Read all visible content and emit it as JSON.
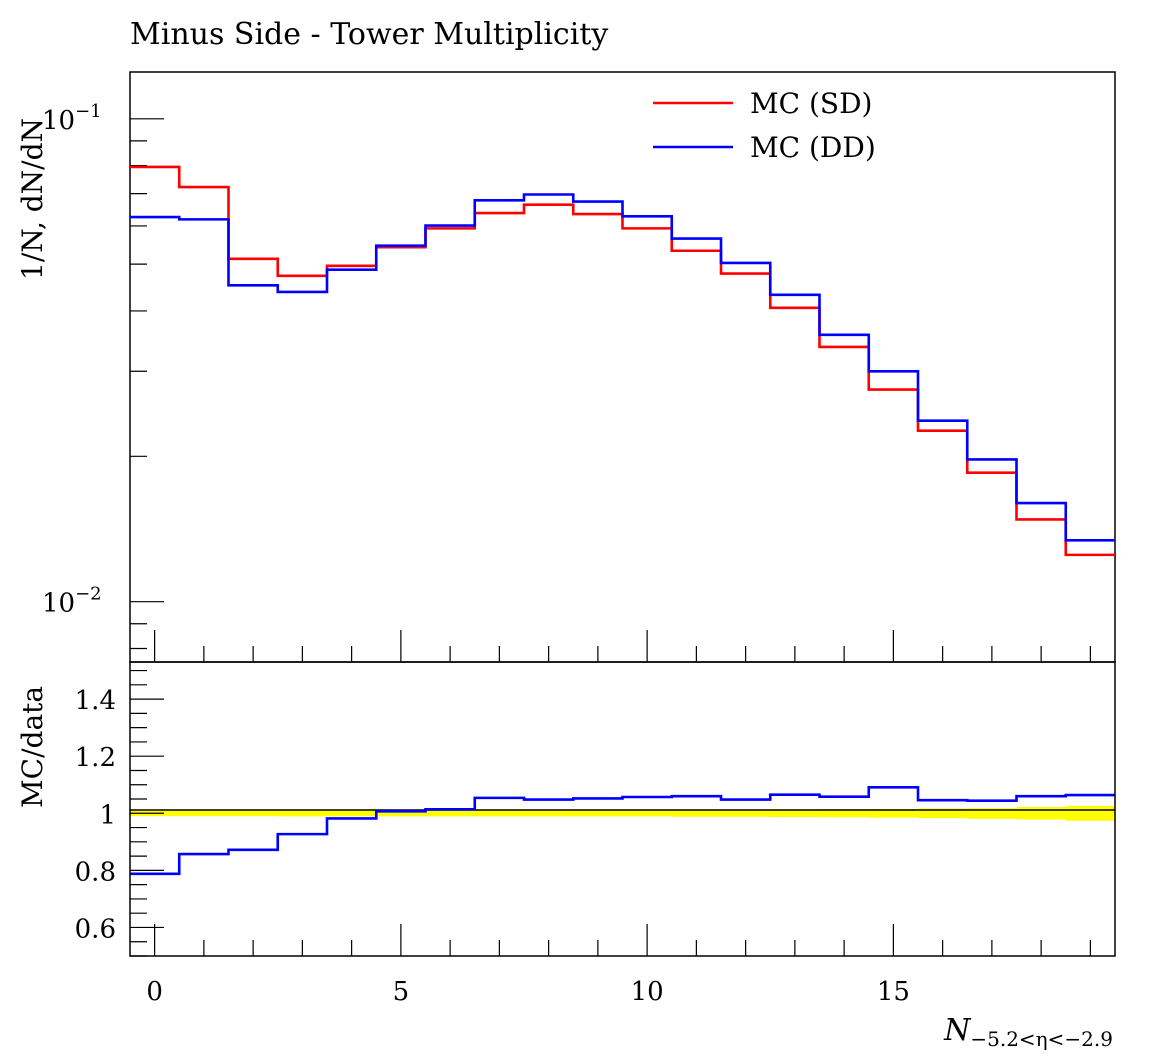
{
  "chart_data": [
    {
      "panel": "main",
      "type": "line",
      "title": "Minus Side - Tower Multiplicity",
      "ylabel": "1/N, dN/dN",
      "yscale": "log",
      "ylim": [
        0.0075,
        0.125
      ],
      "xlim": [
        -0.5,
        19.5
      ],
      "yticks": [
        {
          "value": 0.1,
          "base": "10",
          "exp": "−1"
        },
        {
          "value": 0.01,
          "base": "10",
          "exp": "−2"
        }
      ],
      "grid": false,
      "legend_position": "top-right",
      "bin_edges": [
        -0.5,
        0.5,
        1.5,
        2.5,
        3.5,
        4.5,
        5.5,
        6.5,
        7.5,
        8.5,
        9.5,
        10.5,
        11.5,
        12.5,
        13.5,
        14.5,
        15.5,
        16.5,
        17.5,
        18.5,
        19.5
      ],
      "series": [
        {
          "name": "MC (SD)",
          "color": "#ff0000",
          "values": [
            0.0795,
            0.0722,
            0.0513,
            0.0473,
            0.0496,
            0.0542,
            0.0593,
            0.0638,
            0.0664,
            0.0635,
            0.0593,
            0.0533,
            0.0478,
            0.0406,
            0.0337,
            0.0275,
            0.0226,
            0.0185,
            0.0148,
            0.0125
          ]
        },
        {
          "name": "MC (DD)",
          "color": "#0000ff",
          "values": [
            0.0626,
            0.0619,
            0.0452,
            0.0438,
            0.0487,
            0.0546,
            0.0601,
            0.0678,
            0.0697,
            0.0674,
            0.0628,
            0.0565,
            0.0503,
            0.0432,
            0.0357,
            0.03,
            0.0237,
            0.0197,
            0.016,
            0.0134
          ]
        }
      ]
    },
    {
      "panel": "ratio",
      "type": "line",
      "xlabel_main": "N",
      "xlabel_sub": "−5.2<η<−2.9",
      "ylabel": "MC/data",
      "ylim": [
        0.5,
        1.53
      ],
      "xlim": [
        -0.5,
        19.5
      ],
      "yticks": [
        "0.6",
        "0.8",
        "1",
        "1.2",
        "1.4"
      ],
      "xticks": [
        "0",
        "5",
        "10",
        "15"
      ],
      "bin_edges": [
        -0.5,
        0.5,
        1.5,
        2.5,
        3.5,
        4.5,
        5.5,
        6.5,
        7.5,
        8.5,
        9.5,
        10.5,
        11.5,
        12.5,
        13.5,
        14.5,
        15.5,
        16.5,
        17.5,
        18.5,
        19.5
      ],
      "band": {
        "color": "#ffff00",
        "center": 1.0,
        "halfwidth": [
          0.01,
          0.01,
          0.01,
          0.011,
          0.011,
          0.011,
          0.011,
          0.011,
          0.011,
          0.011,
          0.011,
          0.012,
          0.012,
          0.013,
          0.014,
          0.015,
          0.017,
          0.019,
          0.022,
          0.026
        ]
      },
      "series": [
        {
          "name": "MC (DD)",
          "color": "#0000ff",
          "values": [
            0.788,
            0.857,
            0.872,
            0.927,
            0.982,
            1.007,
            1.014,
            1.054,
            1.048,
            1.052,
            1.057,
            1.06,
            1.048,
            1.065,
            1.058,
            1.091,
            1.046,
            1.044,
            1.06,
            1.064
          ]
        }
      ]
    }
  ]
}
